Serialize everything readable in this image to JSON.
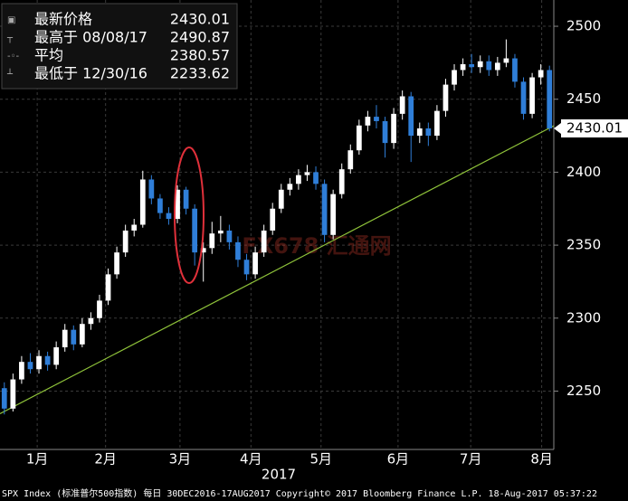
{
  "chart_data": {
    "type": "candlestick",
    "open": [
      2252,
      2238,
      2258,
      2270,
      2265,
      2274,
      2268,
      2280,
      2292,
      2282,
      2296,
      2300,
      2312,
      2330,
      2345,
      2360,
      2364,
      2395,
      2382,
      2372,
      2368,
      2388,
      2375,
      2345,
      2348,
      2358,
      2360,
      2352,
      2340,
      2330,
      2345,
      2360,
      2375,
      2388,
      2392,
      2398,
      2400,
      2392,
      2357,
      2385,
      2402,
      2415,
      2432,
      2438,
      2435,
      2420,
      2440,
      2452,
      2425,
      2430,
      2425,
      2442,
      2460,
      2470,
      2474,
      2472,
      2476,
      2470,
      2475,
      2478,
      2462,
      2440,
      2465,
      2470
    ],
    "high": [
      2256,
      2262,
      2274,
      2276,
      2278,
      2277,
      2284,
      2296,
      2295,
      2300,
      2304,
      2316,
      2334,
      2349,
      2364,
      2368,
      2401,
      2398,
      2385,
      2376,
      2391,
      2390,
      2378,
      2352,
      2366,
      2370,
      2364,
      2356,
      2344,
      2349,
      2364,
      2379,
      2392,
      2396,
      2402,
      2405,
      2404,
      2395,
      2388,
      2406,
      2419,
      2436,
      2442,
      2446,
      2438,
      2444,
      2456,
      2455,
      2434,
      2434,
      2446,
      2464,
      2474,
      2478,
      2481,
      2480,
      2480,
      2479,
      2491,
      2481,
      2465,
      2468,
      2474,
      2473
    ],
    "low": [
      2234,
      2236,
      2255,
      2262,
      2262,
      2264,
      2265,
      2277,
      2278,
      2280,
      2292,
      2297,
      2309,
      2327,
      2342,
      2356,
      2362,
      2378,
      2368,
      2364,
      2365,
      2371,
      2336,
      2325,
      2344,
      2352,
      2347,
      2335,
      2326,
      2327,
      2342,
      2357,
      2372,
      2384,
      2388,
      2394,
      2388,
      2352,
      2354,
      2382,
      2399,
      2412,
      2428,
      2430,
      2410,
      2416,
      2436,
      2407,
      2420,
      2418,
      2422,
      2438,
      2456,
      2466,
      2468,
      2468,
      2466,
      2466,
      2472,
      2458,
      2436,
      2437,
      2460,
      2428
    ],
    "close": [
      2238,
      2258,
      2270,
      2265,
      2274,
      2268,
      2280,
      2292,
      2282,
      2296,
      2300,
      2312,
      2330,
      2345,
      2360,
      2364,
      2395,
      2382,
      2372,
      2368,
      2388,
      2375,
      2345,
      2348,
      2358,
      2360,
      2352,
      2340,
      2330,
      2345,
      2360,
      2375,
      2388,
      2392,
      2398,
      2400,
      2392,
      2357,
      2385,
      2402,
      2415,
      2432,
      2438,
      2435,
      2420,
      2440,
      2452,
      2425,
      2430,
      2425,
      2442,
      2460,
      2470,
      2474,
      2472,
      2476,
      2470,
      2475,
      2478,
      2462,
      2440,
      2465,
      2470,
      2430
    ],
    "up_color": "#ffffff",
    "down_color": "#2f7ed8",
    "xlim": [
      -0.5,
      63.5
    ],
    "xticks": [
      {
        "value": 3.8,
        "label": "1月"
      },
      {
        "value": 11.7,
        "label": "2月"
      },
      {
        "value": 20.3,
        "label": "3月"
      },
      {
        "value": 28.5,
        "label": "4月"
      },
      {
        "value": 36.6,
        "label": "5月"
      },
      {
        "value": 45.5,
        "label": "6月"
      },
      {
        "value": 53.9,
        "label": "7月"
      },
      {
        "value": 62.1,
        "label": "8月"
      }
    ],
    "x_label": "2017",
    "ylim": [
      2210,
      2518
    ],
    "yticks": [
      2250,
      2300,
      2350,
      2400,
      2450,
      2500
    ],
    "grid": true,
    "trendline": {
      "x": [
        -0.5,
        63.5
      ],
      "y": [
        2234.5,
        2431.8
      ],
      "color": "#8fc33a"
    },
    "legend_box": [
      {
        "label": "最新价格",
        "value": "2430.01"
      },
      {
        "label": "最高于 08/08/17",
        "value": "2490.87"
      },
      {
        "label": "平均",
        "value": "2380.57"
      },
      {
        "label": "最低于 12/30/16",
        "value": "2233.62"
      }
    ],
    "watermark": "FX678 汇通网",
    "footer": "SPX Index (标准普尔500指数) 每日 30DEC2016-17AUG2017 Copyright© 2017 Bloomberg Finance L.P. 18-Aug-2017 05:37:22"
  }
}
